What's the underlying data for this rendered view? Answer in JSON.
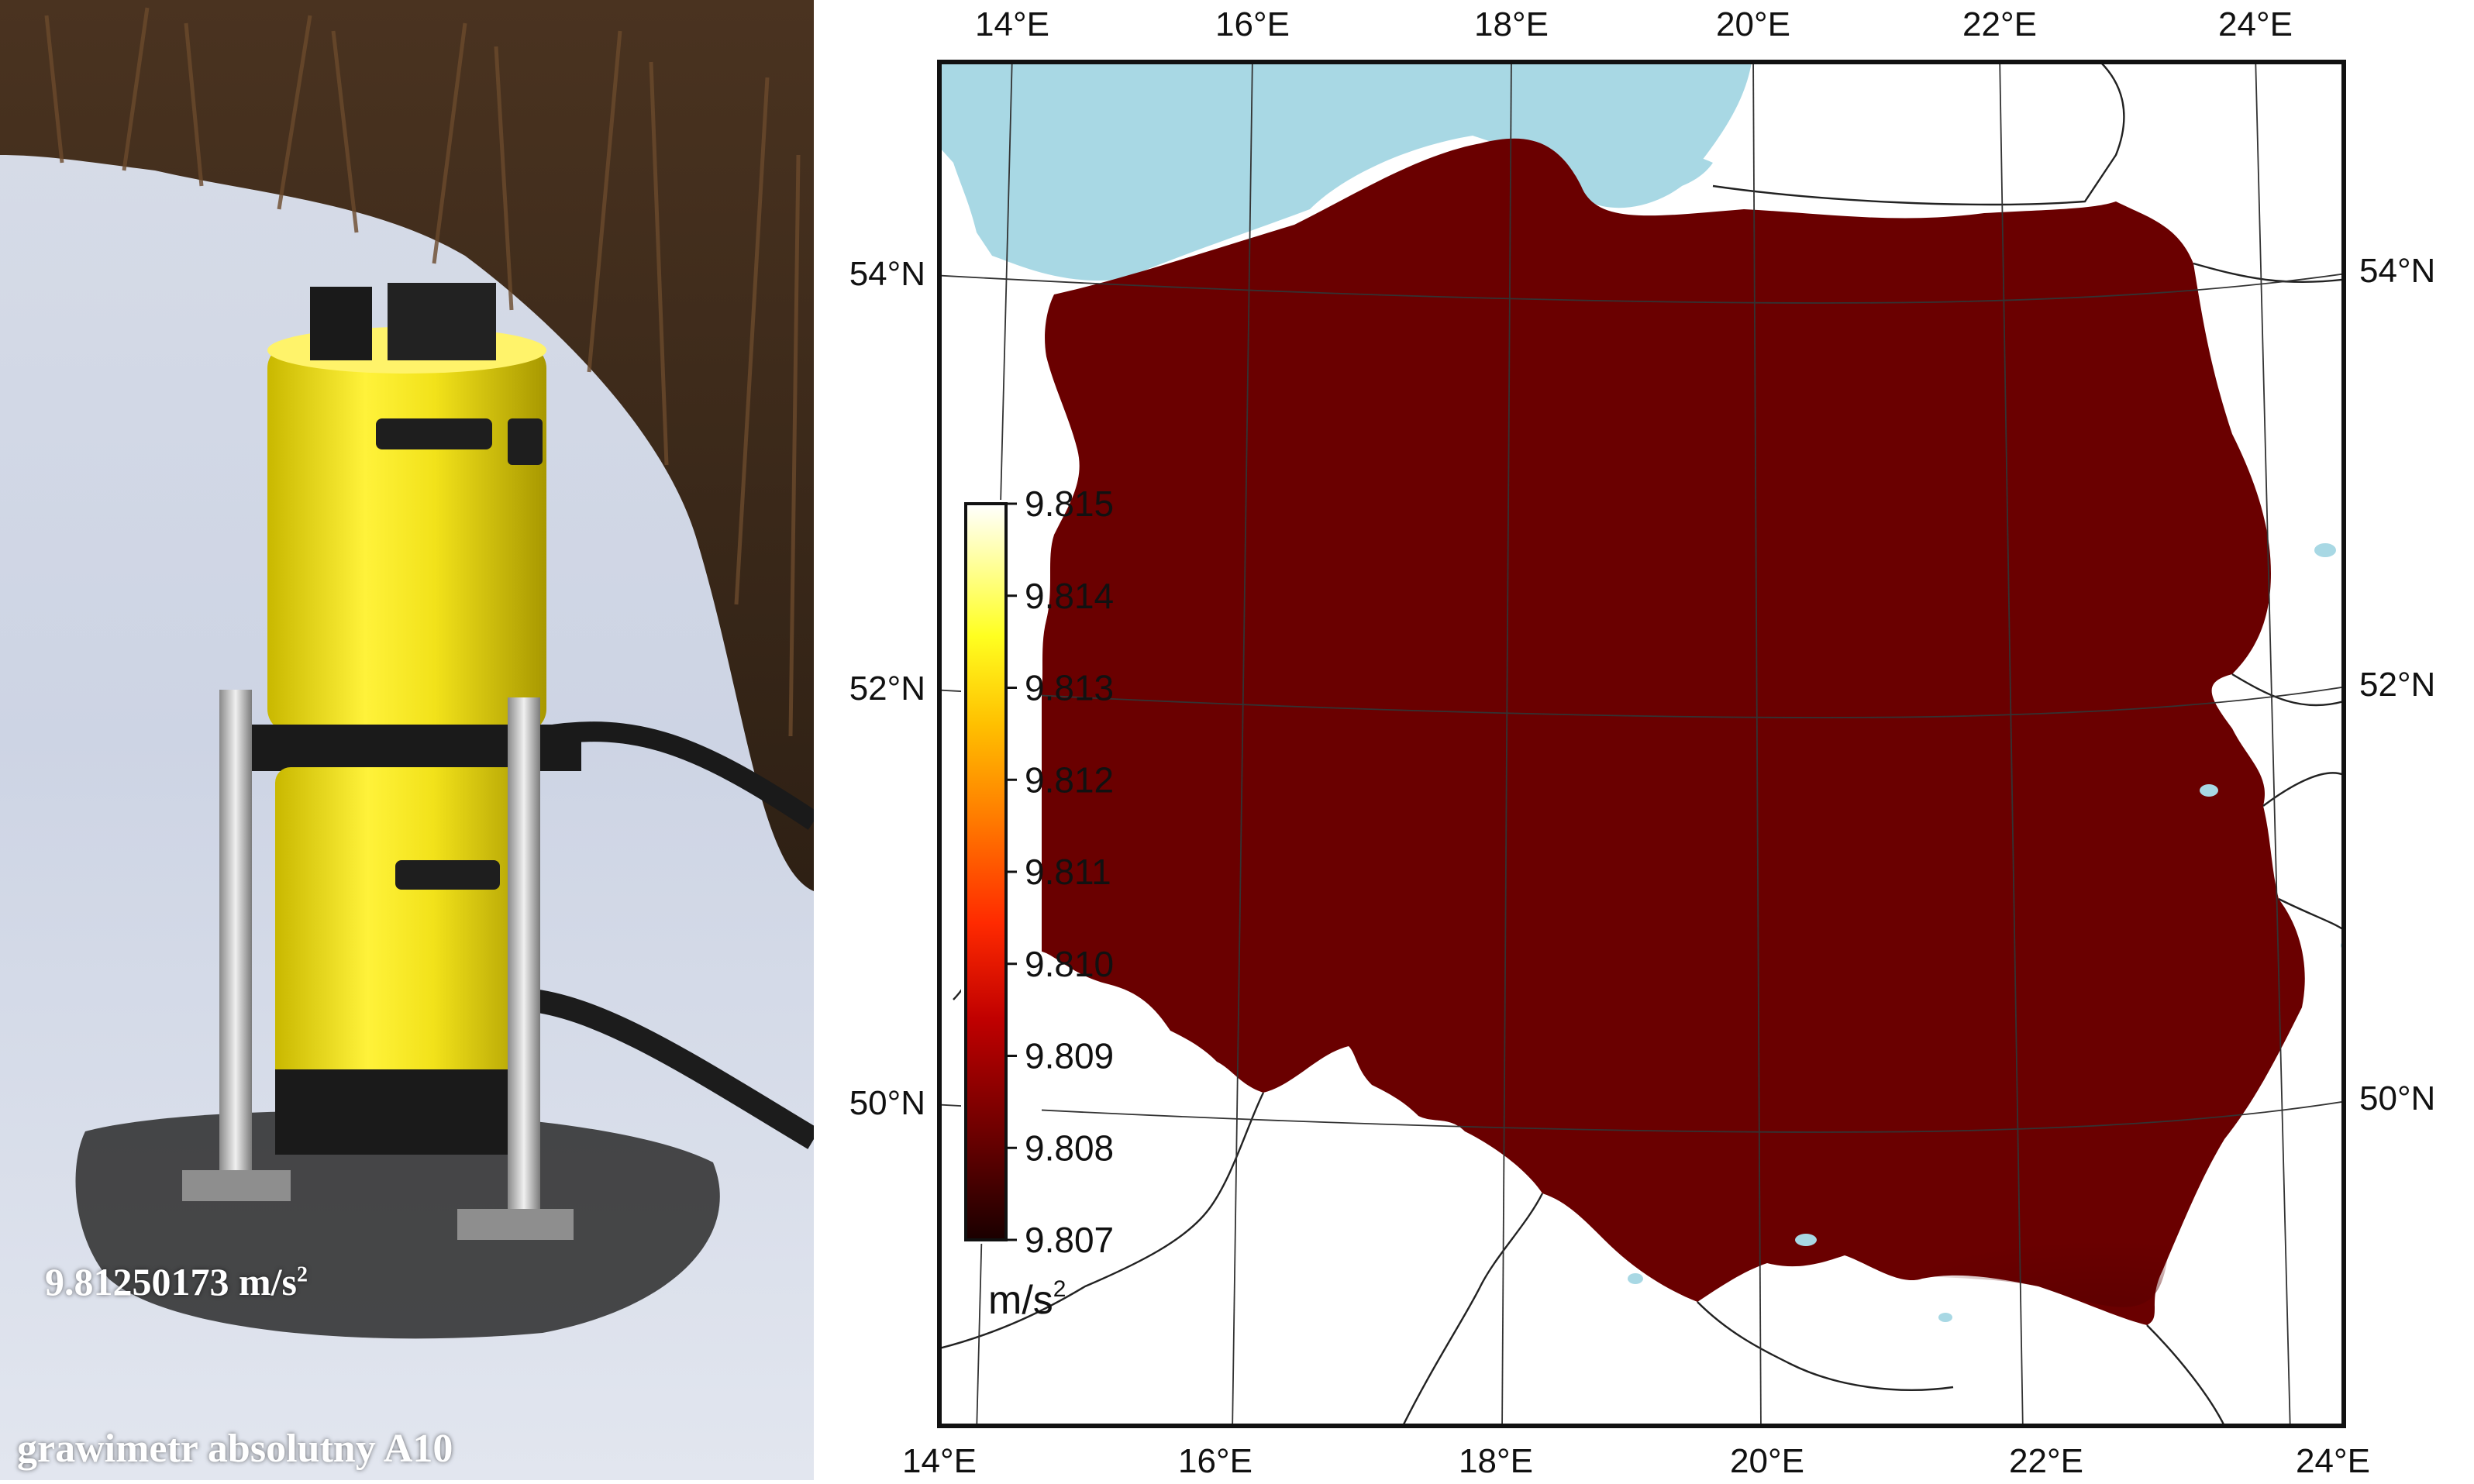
{
  "photo": {
    "measurement_value": "9.81250173",
    "measurement_unit": "m/s",
    "measurement_unit_exponent": "2",
    "instrument_label": "grawimetr absolutny A10"
  },
  "map": {
    "lon_labels_top": [
      "14°E",
      "16°E",
      "18°E",
      "20°E",
      "22°E",
      "24°E"
    ],
    "lon_labels_bottom": [
      "14°E",
      "16°E",
      "18°E",
      "20°E",
      "22°E",
      "24°E"
    ],
    "lat_labels_left": [
      "54°N",
      "52°N",
      "50°N"
    ],
    "lat_labels_right": [
      "54°N",
      "52°N",
      "50°N"
    ],
    "colorbar": {
      "ticks": [
        "9.815",
        "9.814",
        "9.813",
        "9.812",
        "9.811",
        "9.810",
        "9.809",
        "9.808",
        "9.807"
      ],
      "unit": "m/s",
      "unit_exponent": "2",
      "min": 9.807,
      "max": 9.815,
      "colors": [
        "#3a0000",
        "#8b0000",
        "#cc0a00",
        "#ff3a00",
        "#ff7a00",
        "#ffb000",
        "#ffe000",
        "#ffff40",
        "#ffffff"
      ]
    },
    "colors": {
      "sea": "#a8d8e4",
      "land_outside": "#ffffff",
      "border": "#222222",
      "graticule": "#333333"
    }
  }
}
